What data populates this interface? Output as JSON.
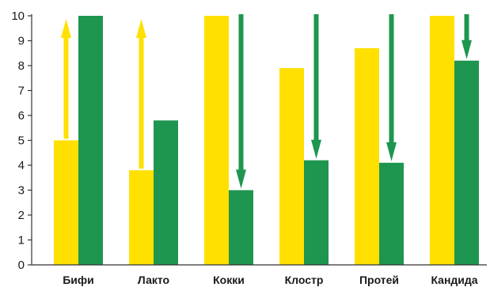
{
  "chart_data": {
    "type": "bar",
    "categories": [
      "Бифи",
      "Лакто",
      "Кокки",
      "Клостр",
      "Протей",
      "Кандида"
    ],
    "series": [
      {
        "values": [
          5.0,
          3.8,
          10.0,
          7.9,
          8.7,
          10.0
        ],
        "color": "#ffe000"
      },
      {
        "values": [
          10.0,
          5.8,
          3.0,
          4.2,
          4.1,
          8.2
        ],
        "color": "#1e9650"
      }
    ],
    "arrows": [
      {
        "category": "Бифи",
        "from": 5.0,
        "to": 10.0,
        "direction": "up",
        "color": "#ffe000"
      },
      {
        "category": "Лакто",
        "from": 3.8,
        "to": 10.0,
        "direction": "up",
        "color": "#ffe000"
      },
      {
        "category": "Кокки",
        "from": 10.0,
        "to": 3.0,
        "direction": "down",
        "color": "#1e9650"
      },
      {
        "category": "Клостр",
        "from": 10.0,
        "to": 4.2,
        "direction": "down",
        "color": "#1e9650"
      },
      {
        "category": "Протей",
        "from": 10.0,
        "to": 4.1,
        "direction": "down",
        "color": "#1e9650"
      },
      {
        "category": "Кандида",
        "from": 10.0,
        "to": 8.2,
        "direction": "down",
        "color": "#1e9650"
      }
    ],
    "yticks": [
      "0",
      "1",
      "2",
      "3",
      "4",
      "5",
      "6",
      "7",
      "8",
      "9",
      "10"
    ],
    "ylim": [
      0,
      10
    ],
    "grid": false,
    "title": "",
    "xlabel": "",
    "ylabel": ""
  }
}
